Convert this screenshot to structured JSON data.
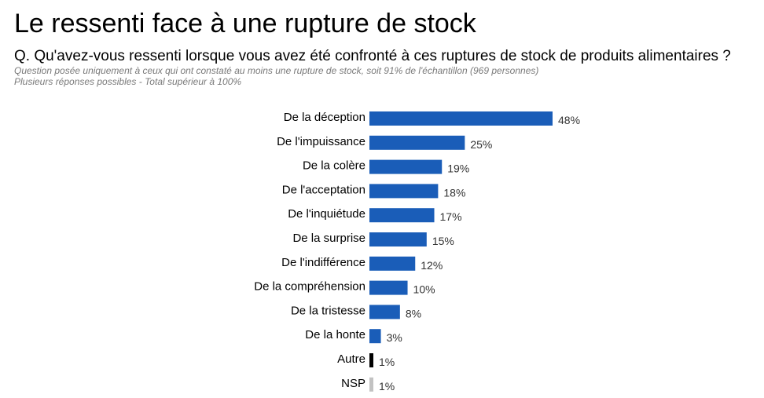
{
  "title": "Le ressenti face à une rupture de stock",
  "question": "Q. Qu'avez-vous ressenti lorsque vous avez été confronté à ces ruptures de stock de produits alimentaires ?",
  "notes": [
    "Question posée uniquement à ceux qui ont constaté au moins une rupture de stock, soit 91% de l'échantillon (969 personnes)",
    "Plusieurs réponses possibles - Total supérieur à 100%"
  ],
  "colors": {
    "main": "#1a5db8",
    "autre": "#000000",
    "nsp": "#c2c2c2",
    "label": "#000000",
    "value": "#333333"
  },
  "chart_data": {
    "type": "bar",
    "orientation": "horizontal",
    "categories": [
      "De la déception",
      "De l'impuissance",
      "De la colère",
      "De l'acceptation",
      "De l'inquiétude",
      "De la surprise",
      "De l'indifférence",
      "De la compréhension",
      "De la tristesse",
      "De la honte",
      "Autre",
      "NSP"
    ],
    "values": [
      48,
      25,
      19,
      18,
      17,
      15,
      12,
      10,
      8,
      3,
      1,
      1
    ],
    "value_labels": [
      "48%",
      "25%",
      "19%",
      "18%",
      "17%",
      "15%",
      "12%",
      "10%",
      "8%",
      "3%",
      "1%",
      "1%"
    ],
    "bar_colors": [
      "main",
      "main",
      "main",
      "main",
      "main",
      "main",
      "main",
      "main",
      "main",
      "main",
      "autre",
      "nsp"
    ],
    "title": "",
    "xlabel": "",
    "ylabel": "",
    "unit": "%",
    "xlim": [
      0,
      48
    ],
    "grid": false,
    "legend": "none"
  }
}
